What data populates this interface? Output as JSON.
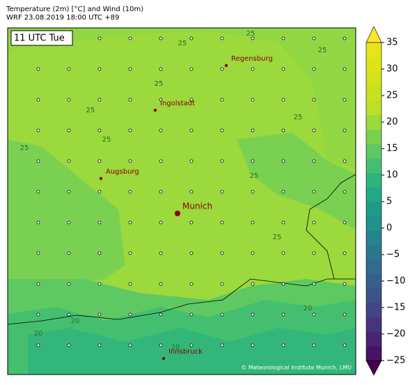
{
  "header": {
    "title": "Temperature (2m) [°C] and Wind (10m)",
    "subtitle": "WRF 23.08.2019 18:00 UTC +89"
  },
  "time_label": "11 UTC Tue",
  "cities": [
    "Regensburg",
    "Ingolstadt",
    "Augsburg",
    "Munich",
    "Innsbruck"
  ],
  "contour_labels": [
    "25",
    "25",
    "25",
    "25",
    "25",
    "25",
    "25",
    "25",
    "25",
    "25",
    "20",
    "20",
    "20",
    "20"
  ],
  "copyright": "© Meteorological Institute Munich, LMU",
  "colorbar": {
    "lim": [
      -25,
      35
    ],
    "ticks": [
      35,
      30,
      25,
      20,
      15,
      10,
      5,
      0,
      {
        "value": -5,
        "label": "−5"
      },
      {
        "value": -10,
        "label": "−10"
      },
      {
        "value": -15,
        "label": "−15"
      },
      {
        "value": -20,
        "label": "−20"
      },
      {
        "value": -25,
        "label": "−25"
      }
    ],
    "colors": [
      "#440154",
      "#471365",
      "#482475",
      "#463480",
      "#414487",
      "#3b528b",
      "#355f8d",
      "#2f6c8e",
      "#2a788e",
      "#25848e",
      "#21918c",
      "#1e9c89",
      "#22a884",
      "#2fb47c",
      "#44bf70",
      "#5ec962",
      "#7ad151",
      "#9bd93c",
      "#bddf26",
      "#c8e020",
      "#d2e21b",
      "#dde318",
      "#e8e419",
      "#fde725"
    ]
  }
}
